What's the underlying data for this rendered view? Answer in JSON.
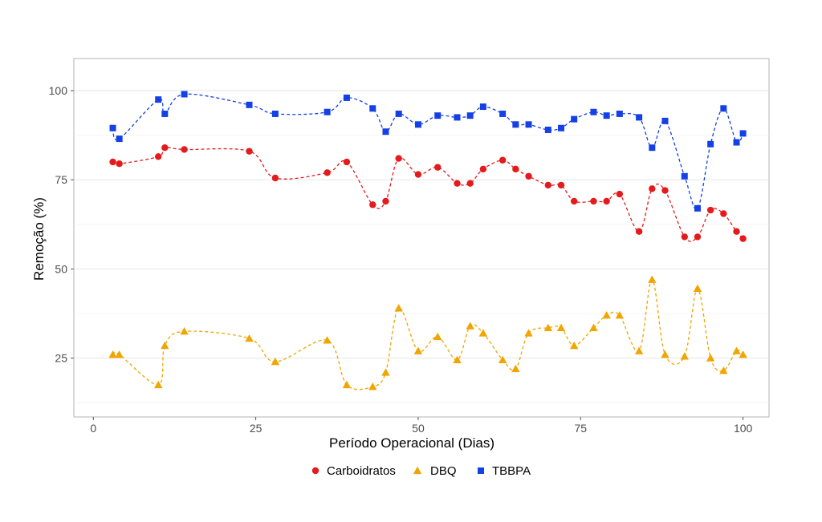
{
  "chart_data": {
    "type": "scatter",
    "title": "",
    "xlabel": "Período Operacional (Dias)",
    "ylabel": "Remoção (%)",
    "xlim": [
      -3,
      104
    ],
    "ylim": [
      8.5,
      109
    ],
    "xticks": [
      0,
      25,
      50,
      75,
      100
    ],
    "yticks": [
      25,
      50,
      75,
      100
    ],
    "grid": true,
    "legend_position": "bottom",
    "series": [
      {
        "name": "Carboidratos",
        "color": "#e41a1c",
        "marker": "circle",
        "line": "dashed-smooth",
        "x": [
          3,
          4,
          10,
          11,
          14,
          24,
          28,
          36,
          39,
          43,
          45,
          47,
          50,
          53,
          56,
          58,
          60,
          63,
          65,
          67,
          70,
          72,
          74,
          77,
          79,
          81,
          84,
          86,
          88,
          91,
          93,
          95,
          97,
          99,
          100
        ],
        "y": [
          80,
          79.5,
          81.5,
          84,
          83.5,
          83,
          75.5,
          77,
          80,
          68,
          69,
          81,
          76.5,
          78.5,
          74,
          74,
          78,
          80.5,
          78,
          76,
          73.5,
          73.5,
          69,
          69,
          69,
          71,
          60.5,
          72.5,
          72,
          59,
          59,
          66.5,
          65.5,
          60.5,
          58.5
        ]
      },
      {
        "name": "DBQ",
        "color": "#f0a500",
        "marker": "triangle",
        "line": "dashed-smooth",
        "x": [
          3,
          4,
          10,
          11,
          14,
          24,
          28,
          36,
          39,
          43,
          45,
          47,
          50,
          53,
          56,
          58,
          60,
          63,
          65,
          67,
          70,
          72,
          74,
          77,
          79,
          81,
          84,
          86,
          88,
          91,
          93,
          95,
          97,
          99,
          100
        ],
        "y": [
          26,
          26,
          17.5,
          28.5,
          32.5,
          30.5,
          24,
          30,
          17.5,
          17,
          21,
          39,
          27,
          31,
          24.5,
          34,
          32,
          24.5,
          22,
          32,
          33.5,
          33.5,
          28.5,
          33.5,
          37,
          37,
          27,
          47,
          26,
          25.5,
          44.5,
          25,
          21.5,
          27,
          26
        ]
      },
      {
        "name": "TBBPA",
        "color": "#1440e6",
        "marker": "square",
        "line": "dashed-smooth",
        "x": [
          3,
          4,
          10,
          11,
          14,
          24,
          28,
          36,
          39,
          43,
          45,
          47,
          50,
          53,
          56,
          58,
          60,
          63,
          65,
          67,
          70,
          72,
          74,
          77,
          79,
          81,
          84,
          86,
          88,
          91,
          93,
          95,
          97,
          99,
          100
        ],
        "y": [
          89.5,
          86.5,
          97.5,
          93.5,
          99,
          96,
          93.5,
          94,
          98,
          95,
          88.5,
          93.5,
          90.5,
          93,
          92.5,
          93,
          95.5,
          93.5,
          90.5,
          90.5,
          89,
          89.5,
          92,
          94,
          93,
          93.5,
          92.5,
          84,
          91.5,
          76,
          67,
          85,
          95,
          85.5,
          88
        ]
      }
    ]
  }
}
